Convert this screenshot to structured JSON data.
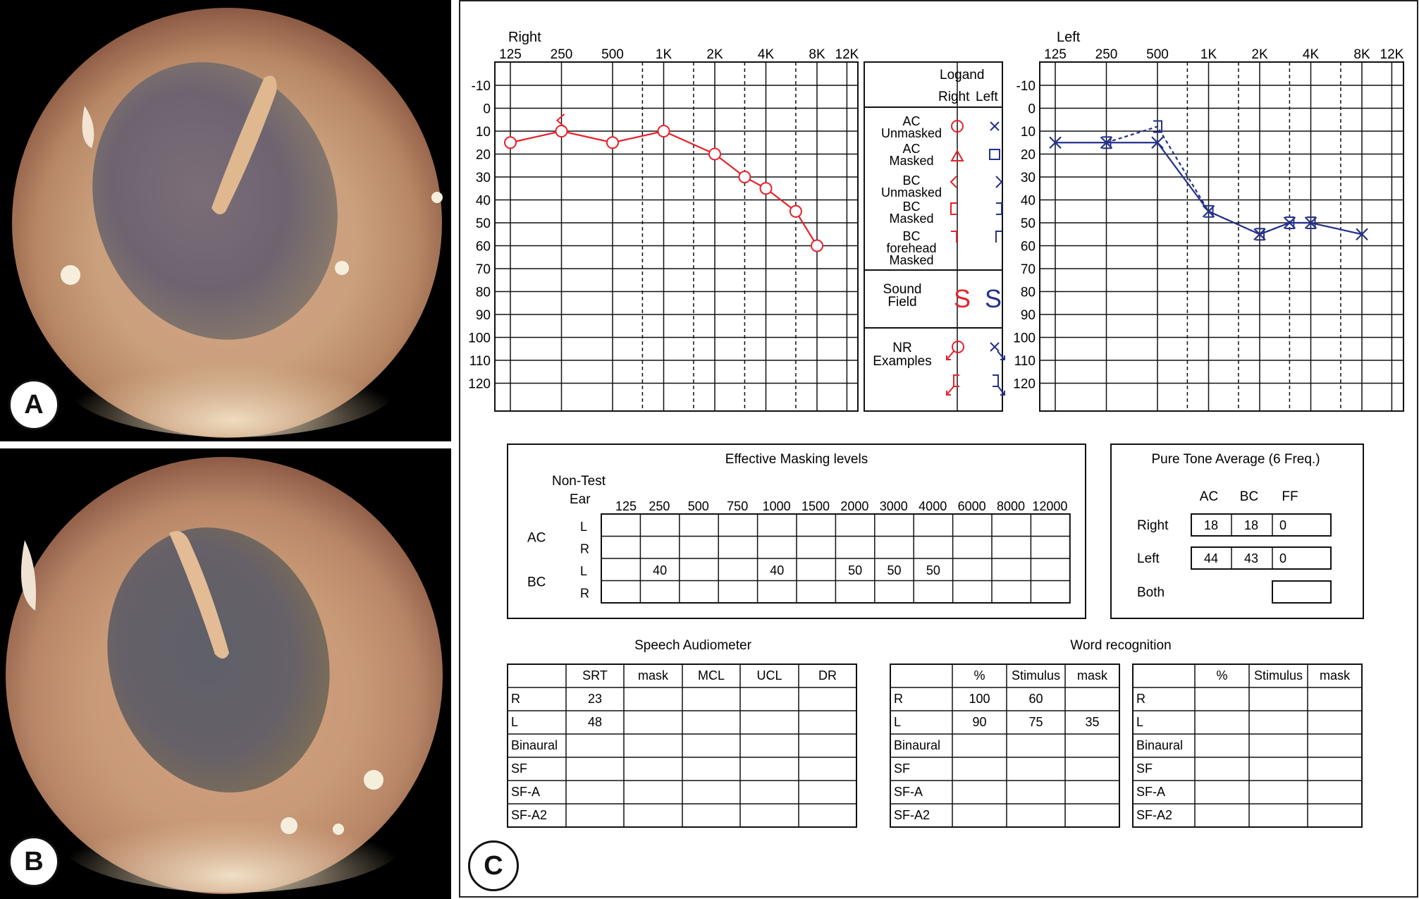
{
  "panels": {
    "a_label": "A",
    "b_label": "B",
    "c_label": "C"
  },
  "colors": {
    "right": "#e8202a",
    "left": "#25318a",
    "grid": "#111111"
  },
  "audiogram": {
    "right_title": "Right",
    "left_title": "Left",
    "freq_labels": [
      "125",
      "250",
      "500",
      "1K",
      "2K",
      "4K",
      "8K",
      "12K"
    ],
    "db_labels": [
      "-10",
      "0",
      "10",
      "20",
      "30",
      "40",
      "50",
      "60",
      "70",
      "80",
      "90",
      "100",
      "110",
      "120"
    ]
  },
  "legend": {
    "header1": "Logand",
    "header_right": "Right",
    "header_left": "Left",
    "rows": [
      {
        "label1": "AC",
        "label2": "Unmasked",
        "label3": ""
      },
      {
        "label1": "AC",
        "label2": "Masked",
        "label3": ""
      },
      {
        "label1": "BC",
        "label2": "Unmasked",
        "label3": ""
      },
      {
        "label1": "BC",
        "label2": "Masked",
        "label3": ""
      },
      {
        "label1": "BC",
        "label2": "forehead",
        "label3": "Masked"
      }
    ],
    "sound_field1": "Sound",
    "sound_field2": "Field",
    "sf_symbol": "S",
    "nr1": "NR",
    "nr2": "Examples"
  },
  "chart_data": [
    {
      "type": "line",
      "title": "Right",
      "xlabel": "",
      "ylabel": "",
      "x_scale": "log2",
      "ylim": [
        -10,
        120
      ],
      "y_inverted": true,
      "series": [
        {
          "marker": "circle",
          "x": [
            125,
            250,
            500,
            1000,
            2000,
            3000,
            4000,
            6000,
            8000
          ],
          "y": [
            15,
            10,
            15,
            10,
            20,
            30,
            35,
            45,
            60
          ]
        },
        {
          "marker": "bc-unmasked-right",
          "x": [
            250
          ],
          "y": [
            5
          ]
        }
      ]
    },
    {
      "type": "line",
      "title": "Left",
      "xlabel": "",
      "ylabel": "",
      "x_scale": "log2",
      "ylim": [
        -10,
        120
      ],
      "y_inverted": true,
      "series": [
        {
          "marker": "x",
          "x": [
            125,
            250,
            500,
            1000,
            2000,
            3000,
            4000,
            8000
          ],
          "y": [
            15,
            15,
            15,
            45,
            55,
            50,
            50,
            55
          ]
        },
        {
          "marker": "bc-masked-left",
          "dashed": true,
          "x": [
            250,
            500,
            1000,
            2000,
            3000,
            4000
          ],
          "y": [
            15,
            8,
            45,
            55,
            50,
            50
          ]
        }
      ]
    }
  ],
  "masking": {
    "title": "Effective Masking levels",
    "nontest1": "Non-Test",
    "nontest2": "Ear",
    "freqs": [
      "125",
      "250",
      "500",
      "750",
      "1000",
      "1500",
      "2000",
      "3000",
      "4000",
      "6000",
      "8000",
      "12000"
    ],
    "groups": [
      "AC",
      "BC"
    ],
    "ears": [
      "L",
      "R",
      "L",
      "R"
    ],
    "rows": [
      [
        "",
        "",
        "",
        "",
        "",
        "",
        "",
        "",
        "",
        "",
        "",
        ""
      ],
      [
        "",
        "",
        "",
        "",
        "",
        "",
        "",
        "",
        "",
        "",
        "",
        ""
      ],
      [
        "",
        "40",
        "",
        "",
        "40",
        "",
        "50",
        "50",
        "50",
        "",
        "",
        ""
      ],
      [
        "",
        "",
        "",
        "",
        "",
        "",
        "",
        "",
        "",
        "",
        "",
        ""
      ]
    ]
  },
  "pta": {
    "title": "Pure Tone Average (6 Freq.)",
    "cols": [
      "AC",
      "BC",
      "FF"
    ],
    "rows": [
      {
        "label": "Right",
        "values": [
          "18",
          "18",
          "0"
        ]
      },
      {
        "label": "Left",
        "values": [
          "44",
          "43",
          "0"
        ]
      },
      {
        "label": "Both",
        "values": [
          "",
          "",
          ""
        ]
      }
    ]
  },
  "speech": {
    "title": "Speech Audiometer",
    "headers": [
      "",
      "SRT",
      "mask",
      "MCL",
      "UCL",
      "DR"
    ],
    "rows": [
      [
        "R",
        "23",
        "",
        "",
        "",
        ""
      ],
      [
        "L",
        "48",
        "",
        "",
        "",
        ""
      ],
      [
        "Binaural",
        "",
        "",
        "",
        "",
        ""
      ],
      [
        "SF",
        "",
        "",
        "",
        "",
        ""
      ],
      [
        "SF-A",
        "",
        "",
        "",
        "",
        ""
      ],
      [
        "SF-A2",
        "",
        "",
        "",
        "",
        ""
      ]
    ]
  },
  "word": {
    "title": "Word recognition",
    "headers": [
      "",
      "%",
      "Stimulus",
      "mask"
    ],
    "rows": [
      [
        "R",
        "100",
        "60",
        ""
      ],
      [
        "L",
        "90",
        "75",
        "35"
      ],
      [
        "Binaural",
        "",
        "",
        ""
      ],
      [
        "SF",
        "",
        "",
        ""
      ],
      [
        "SF-A",
        "",
        "",
        ""
      ],
      [
        "SF-A2",
        "",
        "",
        ""
      ]
    ],
    "rows2": [
      [
        "R",
        "",
        "",
        ""
      ],
      [
        "L",
        "",
        "",
        ""
      ],
      [
        "Binaural",
        "",
        "",
        ""
      ],
      [
        "SF",
        "",
        "",
        ""
      ],
      [
        "SF-A",
        "",
        "",
        ""
      ],
      [
        "SF-A2",
        "",
        "",
        ""
      ]
    ]
  }
}
